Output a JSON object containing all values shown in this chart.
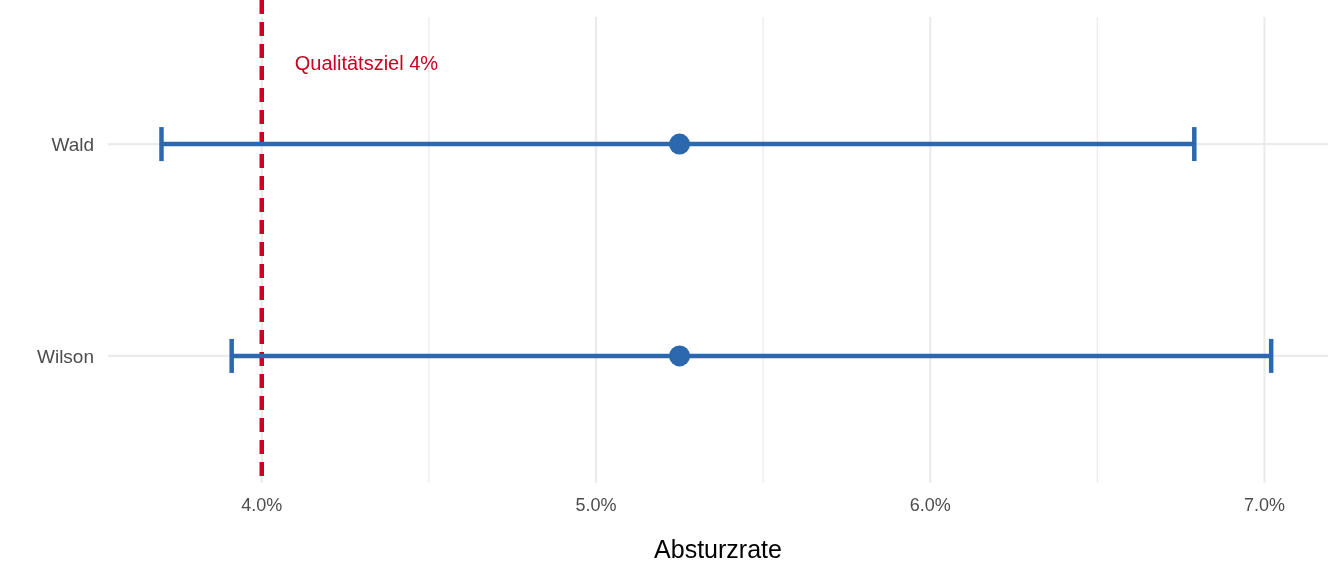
{
  "chart_data": {
    "type": "scatter",
    "orientation": "horizontal",
    "xlabel": "Absturzrate",
    "categories": [
      "Wald",
      "Wilson"
    ],
    "series": [
      {
        "color": "#2b68ad",
        "values": [
          5.25,
          5.25
        ],
        "errors": [
          [
            3.7,
            6.79
          ],
          [
            3.91,
            7.02
          ]
        ]
      }
    ],
    "xlim": [
      3.54,
      7.19
    ],
    "xticks": [
      {
        "value": 4,
        "label": "4.0%"
      },
      {
        "value": 4.5,
        "label": null
      },
      {
        "value": 5,
        "label": "5.0%"
      },
      {
        "value": 5.5,
        "label": null
      },
      {
        "value": 6,
        "label": "6.0%"
      },
      {
        "value": 6.5,
        "label": null
      },
      {
        "value": 7,
        "label": "7.0%"
      }
    ],
    "ref_lines": [
      {
        "axis": "x",
        "value": 4,
        "label": "Qualitätsziel 4%",
        "color": "#cc0022",
        "line_style": "dashed"
      }
    ],
    "grid": true,
    "marker": "circle"
  }
}
